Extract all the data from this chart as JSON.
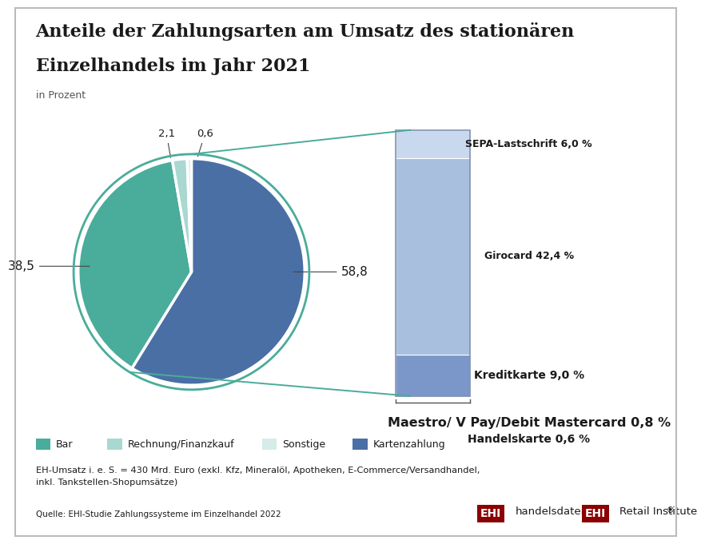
{
  "title_line1": "Anteile der Zahlungsarten am Umsatz des stationären",
  "title_line2": "Einzelhandels im Jahr 2021",
  "subtitle": "in Prozent",
  "pie_values": [
    58.8,
    38.5,
    2.1,
    0.6
  ],
  "pie_labels": [
    "58,8",
    "38,5",
    "2,1",
    "0,6"
  ],
  "pie_colors": [
    "#4a6fa5",
    "#4aac9a",
    "#a8d8d0",
    "#d5ece8"
  ],
  "pie_legend_labels": [
    "Bar",
    "Rechnung/Finanzkauf",
    "Sonstige",
    "Kartenzahlung"
  ],
  "pie_legend_colors": [
    "#4aac9a",
    "#a8d8d0",
    "#d5ece8",
    "#4a6fa5"
  ],
  "bar_segments_bottom_to_top": [
    {
      "label": "Handelskarte 0,6 %",
      "value": 0.6,
      "color": null
    },
    {
      "label": "Maestro/ V Pay/Debit Mastercard 0,8 %",
      "value": 0.8,
      "color": null
    },
    {
      "label": "Kreditkarte 9,0 %",
      "value": 9.0,
      "color": "#7b96c8"
    },
    {
      "label": "Girocard 42,4 %",
      "value": 42.4,
      "color": "#a8c0de"
    },
    {
      "label": "SEPA-Lastschrift 6,0 %",
      "value": 6.0,
      "color": "#c8d8ee"
    }
  ],
  "connector_color": "#4aac9a",
  "background_color": "#ffffff",
  "footnote1": "EH-Umsatz i. e. S. = 430 Mrd. Euro (exkl. Kfz, Mineralöl, Apotheken, E-Commerce/Versandhandel,",
  "footnote2": "inkl. Tankstellen-Shopumsätze)",
  "source": "Quelle: EHI-Studie Zahlungssysteme im Einzelhandel 2022",
  "ehi_color": "#8b0000"
}
